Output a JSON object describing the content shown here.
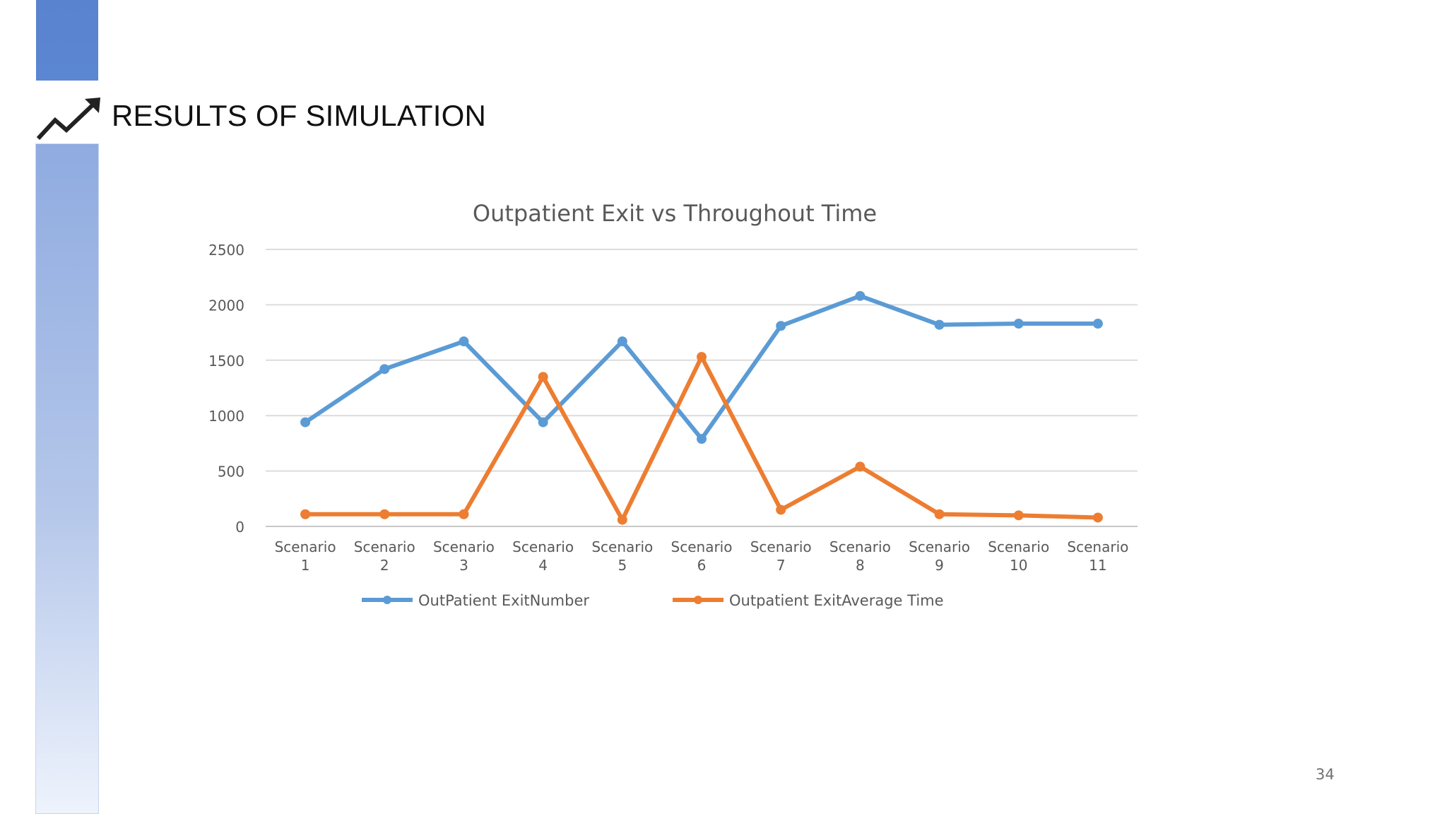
{
  "slide": {
    "title": "RESULTS OF SIMULATION",
    "page_number": "34",
    "accent_color": "#5b86d2"
  },
  "chart_data": {
    "type": "line",
    "title": "Outpatient Exit vs Throughout Time",
    "categories": [
      [
        "Scenario",
        "1"
      ],
      [
        "Scenario",
        "2"
      ],
      [
        "Scenario",
        "3"
      ],
      [
        "Scenario",
        "4"
      ],
      [
        "Scenario",
        "5"
      ],
      [
        "Scenario",
        "6"
      ],
      [
        "Scenario",
        "7"
      ],
      [
        "Scenario",
        "8"
      ],
      [
        "Scenario",
        "9"
      ],
      [
        "Scenario",
        "10"
      ],
      [
        "Scenario",
        "11"
      ]
    ],
    "series": [
      {
        "name": "OutPatient ExitNumber",
        "color": "#5b9bd5",
        "values": [
          940,
          1420,
          1670,
          940,
          1670,
          790,
          1810,
          2080,
          1820,
          1830,
          1830
        ]
      },
      {
        "name": "Outpatient ExitAverage Time",
        "color": "#ed7d31",
        "values": [
          110,
          110,
          110,
          1350,
          60,
          1530,
          150,
          540,
          110,
          100,
          80
        ]
      }
    ],
    "ylim": [
      0,
      2500
    ],
    "yticks": [
      "0",
      "500",
      "1000",
      "1500",
      "2000",
      "2500"
    ],
    "grid": true,
    "legend_position": "bottom"
  }
}
